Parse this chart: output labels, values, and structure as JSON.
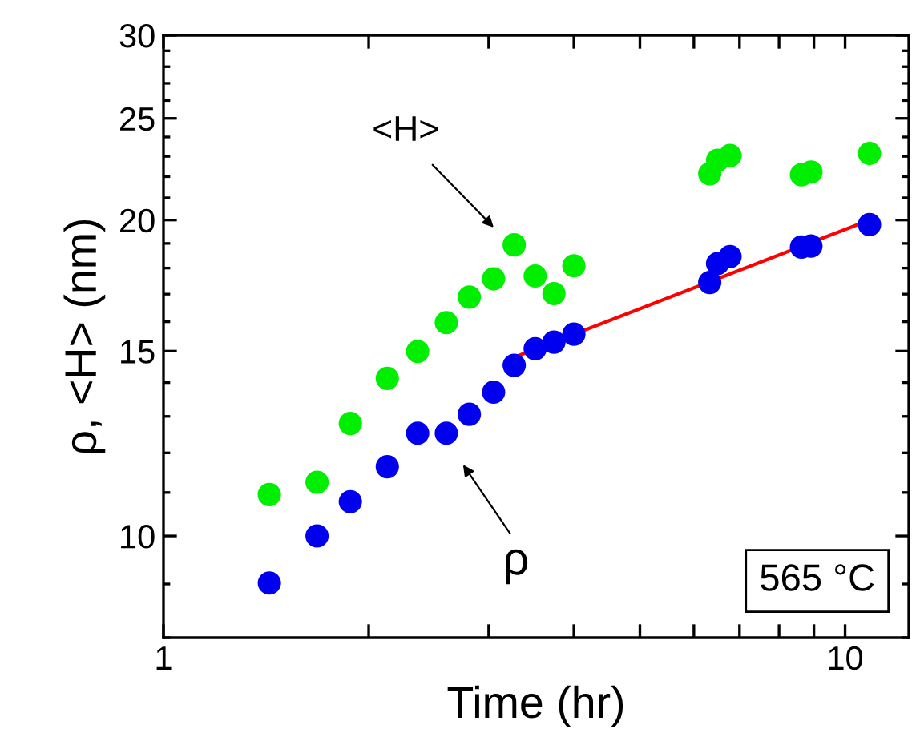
{
  "chart_data": {
    "type": "scatter",
    "xlabel": "Time (hr)",
    "ylabel": "ρ, <H> (nm)",
    "log": "xy",
    "marker": "circle",
    "grid": false,
    "legend": false,
    "xlim": [
      1,
      12.4
    ],
    "ylim": [
      8,
      30
    ],
    "xticks": [
      1,
      {
        "value": 2,
        "label": null
      },
      {
        "value": 3,
        "label": null
      },
      {
        "value": 4,
        "label": null
      },
      {
        "value": 5,
        "label": null
      },
      {
        "value": 6,
        "label": null
      },
      {
        "value": 7,
        "label": null
      },
      {
        "value": 8,
        "label": null
      },
      {
        "value": 9,
        "label": null
      },
      10
    ],
    "yticks": [
      {
        "value": 8,
        "label": null
      },
      {
        "value": 9,
        "label": null
      },
      10,
      {
        "value": 11,
        "label": null
      },
      {
        "value": 12,
        "label": null
      },
      {
        "value": 13,
        "label": null
      },
      {
        "value": 14,
        "label": null
      },
      15,
      {
        "value": 16,
        "label": null
      },
      {
        "value": 17,
        "label": null
      },
      {
        "value": 18,
        "label": null
      },
      {
        "value": 19,
        "label": null
      },
      20,
      {
        "value": 21,
        "label": null
      },
      {
        "value": 22,
        "label": null
      },
      {
        "value": 23,
        "label": null
      },
      {
        "value": 24,
        "label": null
      },
      25,
      {
        "value": 26,
        "label": null
      },
      {
        "value": 27,
        "label": null
      },
      {
        "value": 28,
        "label": null
      },
      {
        "value": 29,
        "label": null
      },
      30
    ],
    "series": [
      {
        "color": "#00ee00",
        "x": [
          1.43,
          1.68,
          1.88,
          2.13,
          2.36,
          2.6,
          2.81,
          3.05,
          3.27,
          3.51,
          3.74,
          4.0,
          6.33,
          6.5,
          6.78,
          8.63,
          8.91,
          10.86
        ],
        "values": [
          10.95,
          11.25,
          12.8,
          14.13,
          14.99,
          15.97,
          16.89,
          17.58,
          18.94,
          17.69,
          17.02,
          18.09,
          22.14,
          22.8,
          23.04,
          22.09,
          22.22,
          23.15
        ]
      },
      {
        "color": "#0000ee",
        "x": [
          1.43,
          1.68,
          1.88,
          2.13,
          2.36,
          2.6,
          2.81,
          3.05,
          3.27,
          3.51,
          3.74,
          4.0,
          6.33,
          6.5,
          6.78,
          8.63,
          8.91,
          10.86
        ],
        "values": [
          9.02,
          10.0,
          10.78,
          11.64,
          12.53,
          12.53,
          13.06,
          13.71,
          14.54,
          15.08,
          15.3,
          15.57,
          17.44,
          18.18,
          18.46,
          18.85,
          18.89,
          19.8
        ]
      },
      {
        "type": "line",
        "color": "#ff0000",
        "marker": "none",
        "x": [
          3.27,
          10.86
        ],
        "values": [
          14.8,
          20.0
        ]
      }
    ],
    "annotations": [
      "<H>",
      "ρ",
      "565 °C"
    ]
  }
}
